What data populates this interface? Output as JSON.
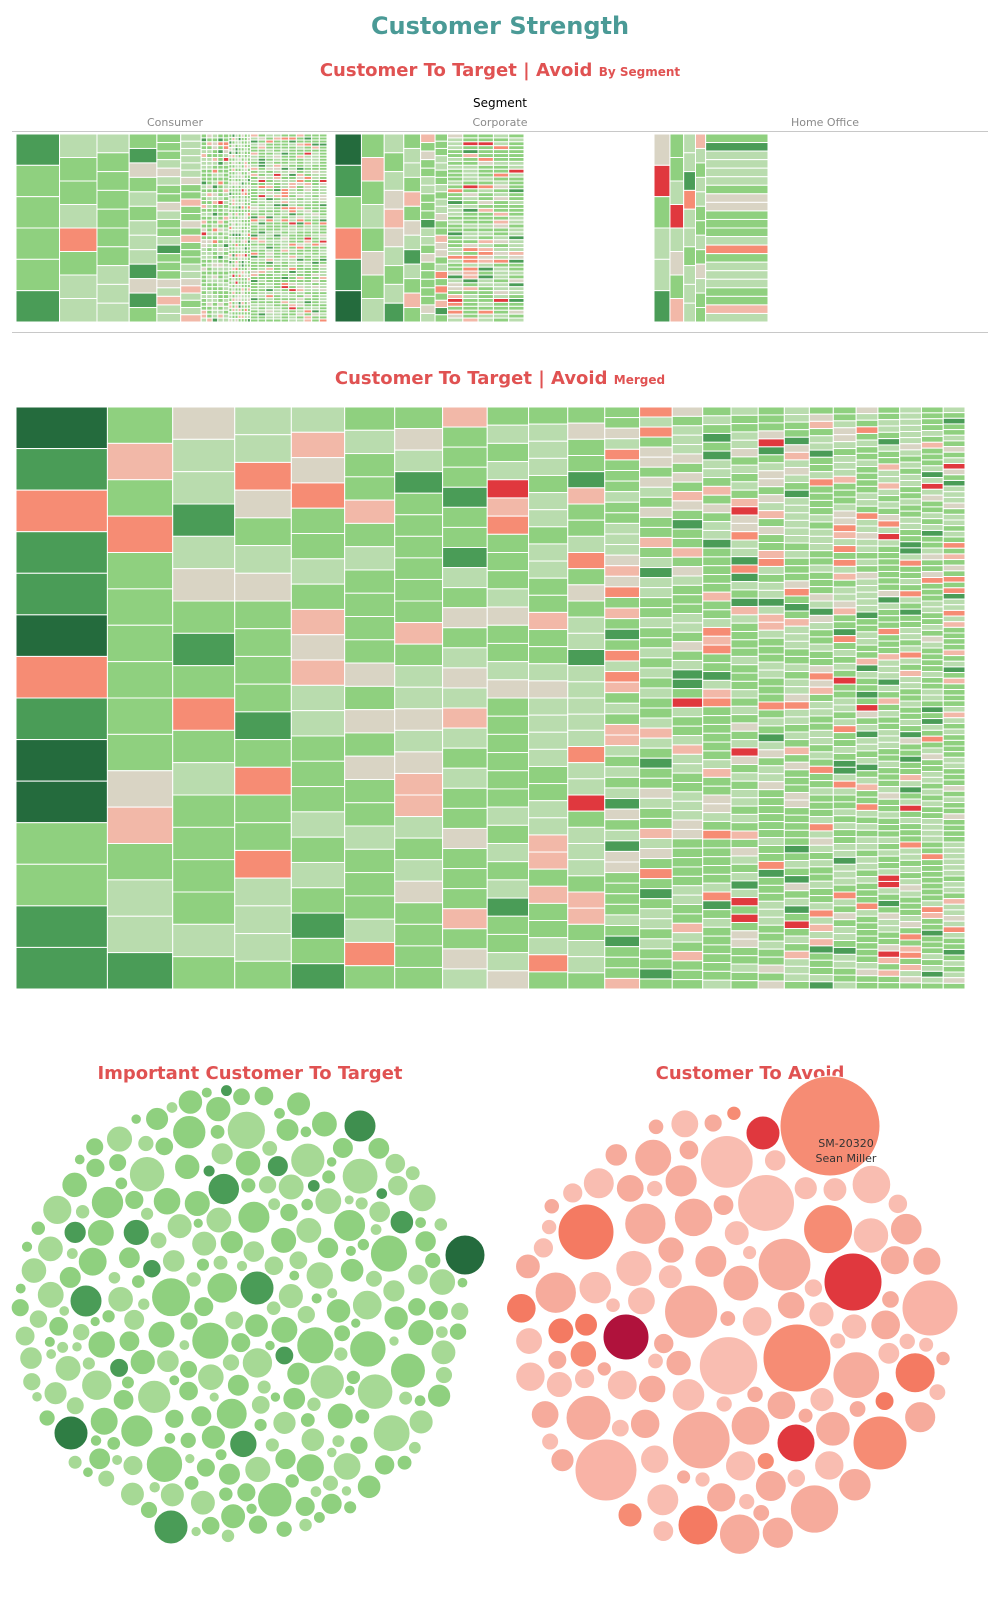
{
  "page": {
    "title": "Customer Strength",
    "title_color": "#4a9a96",
    "section_color": "#e05252"
  },
  "by_segment": {
    "title_main": "Customer To Target | Avoid",
    "title_sub": "By Segment",
    "header": "Segment",
    "columns": [
      "Consumer",
      "Corporate",
      "Home Office"
    ]
  },
  "merged": {
    "title_main": "Customer To Target | Avoid",
    "title_sub": "Merged"
  },
  "target": {
    "title": "Important Customer To Target"
  },
  "avoid": {
    "title": "Customer To Avoid",
    "label_id": "SM-20320",
    "label_name": "Sean Miller"
  },
  "colors": {
    "green_dark": "#246b3d",
    "green_mid": "#4a9c57",
    "green_light": "#8fd07f",
    "green_pale": "#b9dcae",
    "neutral": "#d9d4c4",
    "red_pale": "#f2b8a8",
    "red_mid": "#f68c74",
    "red_dark": "#e0383e",
    "red_deep": "#b0123c"
  },
  "chart_data": [
    {
      "type": "treemap",
      "title": "Customer To Target | Avoid By Segment",
      "xlabel": "Segment",
      "categories": [
        "Consumer",
        "Corporate",
        "Home Office"
      ]
    },
    {
      "type": "treemap",
      "title": "Customer To Target | Avoid Merged"
    },
    {
      "type": "bubble",
      "title": "Important Customer To Target"
    },
    {
      "type": "bubble",
      "title": "Customer To Avoid",
      "annotations": [
        {
          "id": "SM-20320",
          "name": "Sean Miller"
        }
      ]
    }
  ]
}
